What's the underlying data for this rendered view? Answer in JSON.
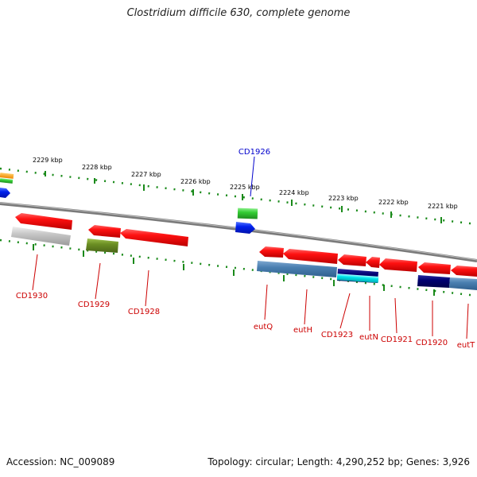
{
  "title": "Clostridium difficile 630, complete genome",
  "footer": {
    "accession": "Accession: NC_009089",
    "stats": "Topology: circular; Length: 4,290,252 bp; Genes: 3,926"
  },
  "scale_labels": [
    "2229 kbp",
    "2228 kbp",
    "2227 kbp",
    "2226 kbp",
    "2225 kbp",
    "2224 kbp",
    "2223 kbp",
    "2222 kbp",
    "2221 kbp"
  ],
  "genes": [
    {
      "name": "CD1930",
      "color": "#cc0000"
    },
    {
      "name": "CD1929",
      "color": "#cc0000"
    },
    {
      "name": "CD1928",
      "color": "#cc0000"
    },
    {
      "name": "CD1926",
      "color": "#0000cc"
    },
    {
      "name": "eutQ",
      "color": "#cc0000"
    },
    {
      "name": "eutH",
      "color": "#cc0000"
    },
    {
      "name": "CD1923",
      "color": "#cc0000"
    },
    {
      "name": "eutN",
      "color": "#cc0000"
    },
    {
      "name": "CD1921",
      "color": "#cc0000"
    },
    {
      "name": "CD1920",
      "color": "#cc0000"
    },
    {
      "name": "eutT",
      "color": "#cc0000"
    }
  ],
  "colors": {
    "gene_red": "#ee1111",
    "scale_tick": "#1a8a1a",
    "backbone": "#808080",
    "cog_blue": "#4a7fb0",
    "cog_gray": "#bdbdbd",
    "cog_olive": "#6b8e23",
    "cog_green": "#33cc33",
    "cog_cyan": "#00e5ee",
    "cog_navy": "#000070",
    "cog_orange": "#ff9900",
    "gene_blue": "#0022ee"
  }
}
